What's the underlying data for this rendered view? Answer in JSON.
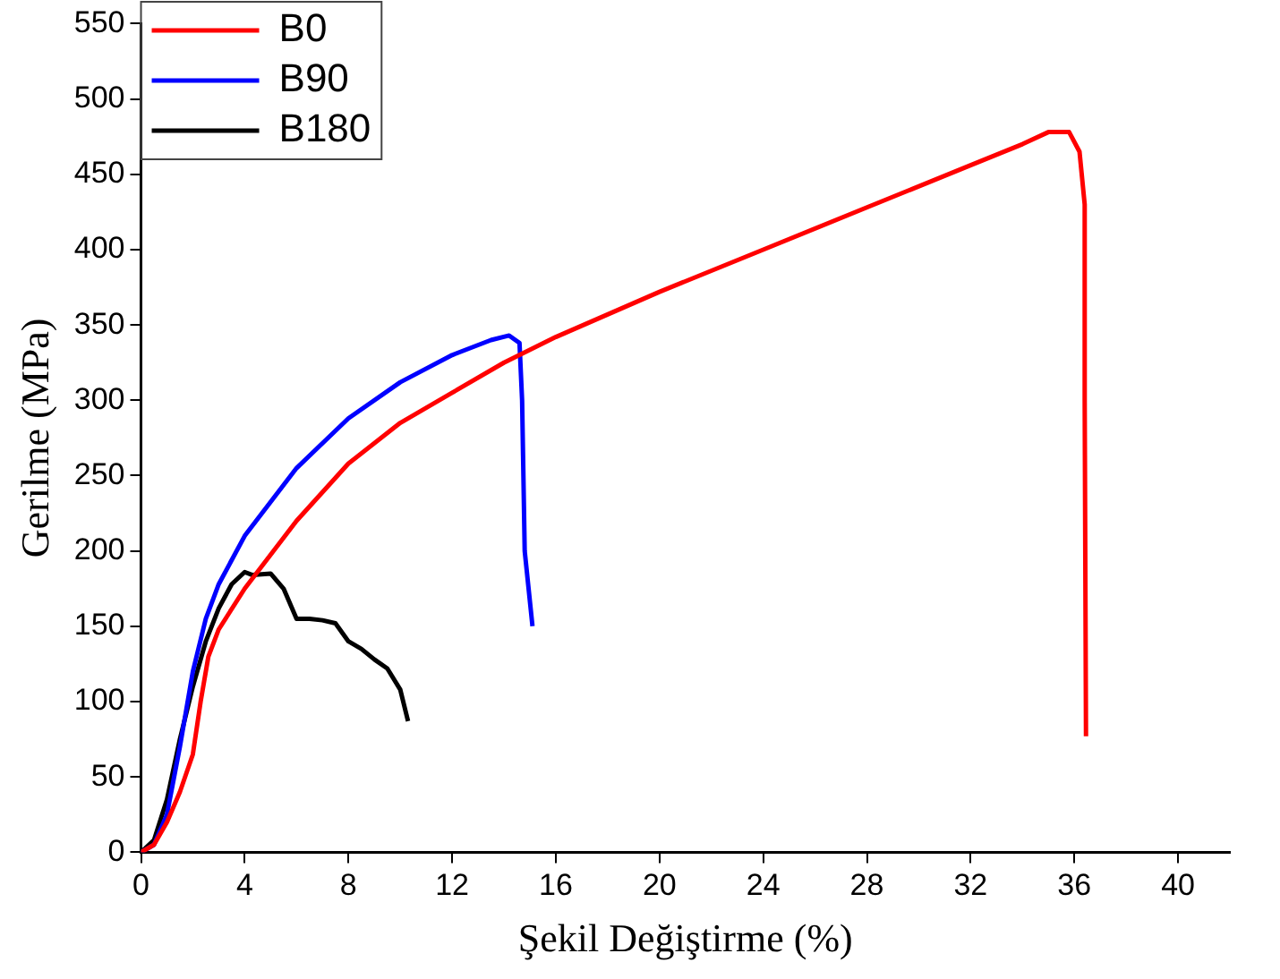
{
  "chart_data": {
    "type": "line",
    "xlabel": "Şekil Değiştirme (%)",
    "ylabel": "Gerilme (MPa)",
    "xlim": [
      0,
      42
    ],
    "xticks": [
      0,
      4,
      8,
      12,
      16,
      20,
      24,
      28,
      32,
      36,
      40
    ],
    "ylim": [
      0,
      550
    ],
    "yticks": [
      0,
      50,
      100,
      150,
      200,
      250,
      300,
      350,
      400,
      450,
      500,
      550
    ],
    "grid": false,
    "legend": "top left",
    "marker": "none",
    "line_style": "solid",
    "series": [
      {
        "name": "B0",
        "color": "#ff0000",
        "x": [
          0,
          0.5,
          1,
          1.5,
          2,
          2.3,
          2.6,
          3,
          4,
          6,
          8,
          10,
          12,
          14,
          16,
          20,
          24,
          28,
          32,
          34,
          35,
          35.8,
          36.2,
          36.4,
          36.4,
          36.45
        ],
        "values": [
          0,
          5,
          20,
          40,
          65,
          100,
          130,
          148,
          175,
          220,
          258,
          285,
          305,
          325,
          342,
          372,
          400,
          428,
          456,
          470,
          478,
          478,
          465,
          430,
          300,
          77
        ]
      },
      {
        "name": "B90",
        "color": "#0000ff",
        "x": [
          0,
          0.5,
          1,
          1.5,
          2,
          2.5,
          3,
          4,
          6,
          8,
          10,
          12,
          13.5,
          14.2,
          14.6,
          14.7,
          14.8,
          15.1
        ],
        "values": [
          0,
          5,
          25,
          70,
          120,
          155,
          178,
          210,
          255,
          288,
          312,
          330,
          340,
          343,
          338,
          300,
          200,
          150
        ]
      },
      {
        "name": "B180",
        "color": "#000000",
        "x": [
          0,
          0.5,
          1,
          1.5,
          2,
          2.5,
          3,
          3.5,
          4,
          4.3,
          5,
          5.5,
          6,
          6.5,
          7,
          7.5,
          8,
          8.5,
          9,
          9.5,
          10,
          10.3
        ],
        "values": [
          0,
          8,
          35,
          75,
          110,
          140,
          162,
          178,
          186,
          184,
          185,
          175,
          155,
          155,
          154,
          152,
          140,
          135,
          128,
          122,
          108,
          87
        ]
      }
    ]
  }
}
